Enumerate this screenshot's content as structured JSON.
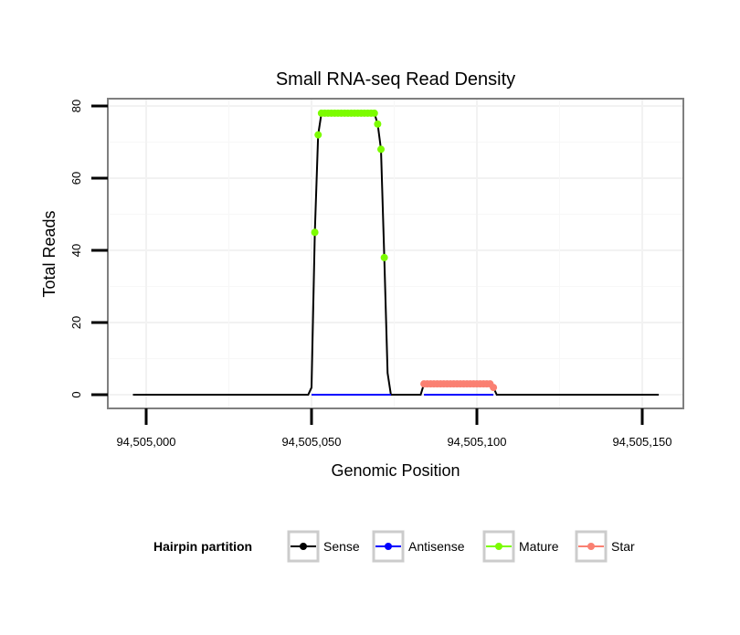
{
  "chart_data": {
    "type": "line",
    "title": "Small RNA-seq Read Density",
    "xlabel": "Genomic Position",
    "ylabel": "Total Reads",
    "xlim": [
      94504988,
      94505162
    ],
    "ylim": [
      -4,
      82
    ],
    "x_ticks": [
      94505000,
      94505050,
      94505100,
      94505150
    ],
    "x_tick_labels": [
      "94,505,000",
      "94,505,050",
      "94,505,100",
      "94,505,150"
    ],
    "y_ticks": [
      0,
      20,
      40,
      60,
      80
    ],
    "y_tick_labels": [
      "0",
      "20",
      "40",
      "60",
      "80"
    ],
    "grid": true,
    "legend": {
      "title": "Hairpin partition",
      "placement": "bottom",
      "entries": [
        "Sense",
        "Antisense",
        "Mature",
        "Star"
      ]
    },
    "series": [
      {
        "name": "Sense",
        "color": "#000000",
        "style": "line",
        "points": [
          [
            94504996,
            0
          ],
          [
            94505049,
            0
          ],
          [
            94505050,
            2
          ],
          [
            94505051,
            45
          ],
          [
            94505052,
            72
          ],
          [
            94505053,
            78
          ],
          [
            94505069,
            78
          ],
          [
            94505070,
            75
          ],
          [
            94505071,
            68
          ],
          [
            94505072,
            38
          ],
          [
            94505073,
            6
          ],
          [
            94505074,
            0
          ],
          [
            94505083,
            0
          ],
          [
            94505084,
            3
          ],
          [
            94505104,
            3
          ],
          [
            94505105,
            2
          ],
          [
            94505106,
            0
          ],
          [
            94505155,
            0
          ]
        ]
      },
      {
        "name": "Antisense",
        "color": "#0000ff",
        "style": "line",
        "points": [
          [
            94505050,
            0
          ],
          [
            94505074,
            0
          ],
          [
            94505084,
            0
          ],
          [
            94505105,
            0
          ]
        ]
      },
      {
        "name": "Mature",
        "color": "#7cfc00",
        "style": "points",
        "points": [
          [
            94505051,
            45
          ],
          [
            94505052,
            72
          ],
          [
            94505053,
            78
          ],
          [
            94505054,
            78
          ],
          [
            94505055,
            78
          ],
          [
            94505056,
            78
          ],
          [
            94505057,
            78
          ],
          [
            94505058,
            78
          ],
          [
            94505059,
            78
          ],
          [
            94505060,
            78
          ],
          [
            94505061,
            78
          ],
          [
            94505062,
            78
          ],
          [
            94505063,
            78
          ],
          [
            94505064,
            78
          ],
          [
            94505065,
            78
          ],
          [
            94505066,
            78
          ],
          [
            94505067,
            78
          ],
          [
            94505068,
            78
          ],
          [
            94505069,
            78
          ],
          [
            94505070,
            75
          ],
          [
            94505071,
            68
          ],
          [
            94505072,
            38
          ]
        ]
      },
      {
        "name": "Star",
        "color": "#fa8072",
        "style": "points",
        "points": [
          [
            94505084,
            3
          ],
          [
            94505085,
            3
          ],
          [
            94505086,
            3
          ],
          [
            94505087,
            3
          ],
          [
            94505088,
            3
          ],
          [
            94505089,
            3
          ],
          [
            94505090,
            3
          ],
          [
            94505091,
            3
          ],
          [
            94505092,
            3
          ],
          [
            94505093,
            3
          ],
          [
            94505094,
            3
          ],
          [
            94505095,
            3
          ],
          [
            94505096,
            3
          ],
          [
            94505097,
            3
          ],
          [
            94505098,
            3
          ],
          [
            94505099,
            3
          ],
          [
            94505100,
            3
          ],
          [
            94505101,
            3
          ],
          [
            94505102,
            3
          ],
          [
            94505103,
            3
          ],
          [
            94505104,
            3
          ],
          [
            94505105,
            2
          ]
        ]
      }
    ]
  }
}
